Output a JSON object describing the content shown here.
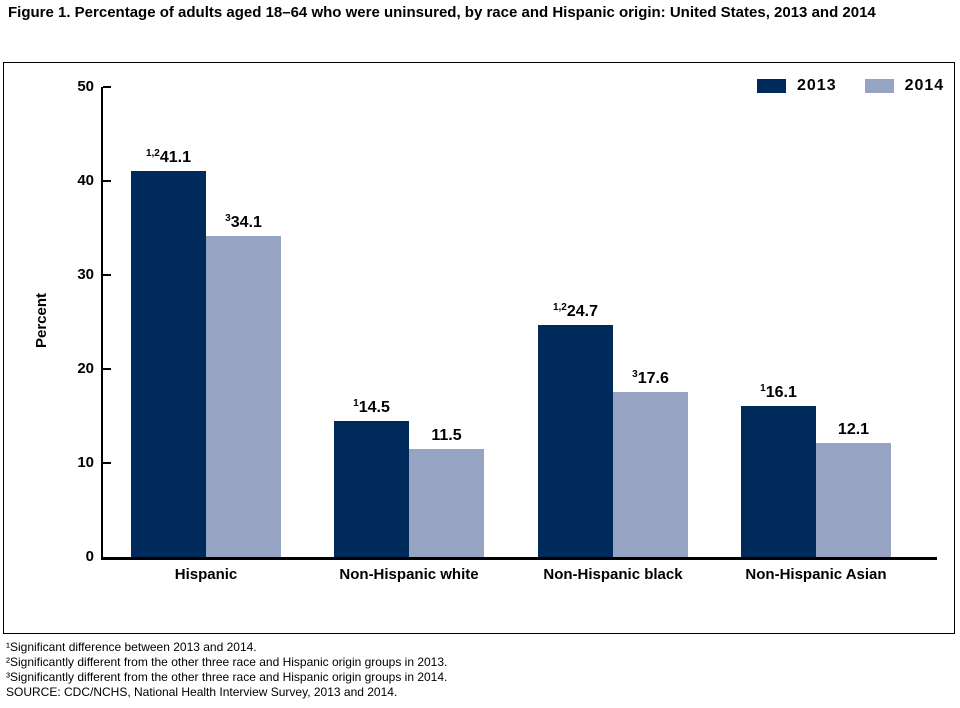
{
  "title": "Figure 1. Percentage of adults aged 18–64 who were uninsured, by race and Hispanic origin: United States, 2013 and 2014",
  "colors": {
    "series_2013": "#002A5C",
    "series_2014": "#97A3C3",
    "text": "#000000",
    "background": "#FFFFFF"
  },
  "legend": {
    "items": [
      {
        "label": "2013",
        "color": "#002A5C"
      },
      {
        "label": "2014",
        "color": "#97A3C3"
      }
    ]
  },
  "y_axis": {
    "title": "Percent",
    "ticks": [
      50,
      40,
      30,
      20,
      10,
      0
    ]
  },
  "chart_data": {
    "type": "bar",
    "title": "Figure 1. Percentage of adults aged 18–64 who were uninsured, by race and Hispanic origin: United States, 2013 and 2014",
    "categories": [
      "Hispanic",
      "Non-Hispanic white",
      "Non-Hispanic black",
      "Non-Hispanic Asian"
    ],
    "series": [
      {
        "name": "2013",
        "color": "#002A5C",
        "values": [
          41.1,
          14.5,
          24.7,
          16.1
        ],
        "label_superscripts": [
          "1,2",
          "1",
          "1,2",
          "1"
        ]
      },
      {
        "name": "2014",
        "color": "#97A3C3",
        "values": [
          34.1,
          11.5,
          17.6,
          12.1
        ],
        "label_superscripts": [
          "3",
          "",
          "3",
          ""
        ]
      }
    ],
    "xlabel": "",
    "ylabel": "Percent",
    "ylim": [
      0,
      50
    ],
    "ytick_interval": 10,
    "grid": false,
    "legend_position": "top-right"
  },
  "footnotes": [
    "¹Significant difference between 2013 and 2014.",
    "²Significantly different from the other three race and Hispanic origin groups in 2013.",
    "³Significantly different from the other three race and Hispanic origin groups in 2014.",
    "SOURCE: CDC/NCHS, National Health Interview Survey, 2013 and 2014."
  ]
}
